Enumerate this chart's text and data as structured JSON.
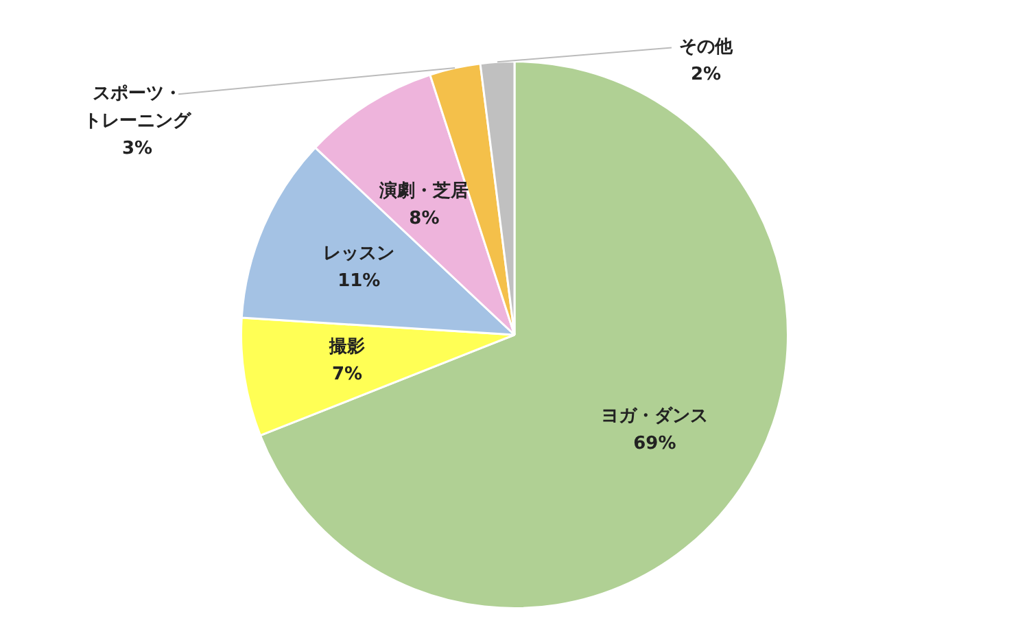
{
  "chart_data": {
    "type": "pie",
    "categories": [
      "ヨガ・ダンス",
      "撮影",
      "レッスン",
      "演劇・芝居",
      "スポーツ・トレーニング",
      "その他"
    ],
    "values": [
      69,
      7,
      11,
      8,
      3,
      2
    ],
    "value_labels": [
      "69%",
      "7%",
      "11%",
      "8%",
      "3%",
      "2%"
    ],
    "colors": [
      "#b0d094",
      "#ffff55",
      "#a4c2e4",
      "#eeb4dc",
      "#f4c04a",
      "#c0c0c0"
    ],
    "legend": false
  }
}
